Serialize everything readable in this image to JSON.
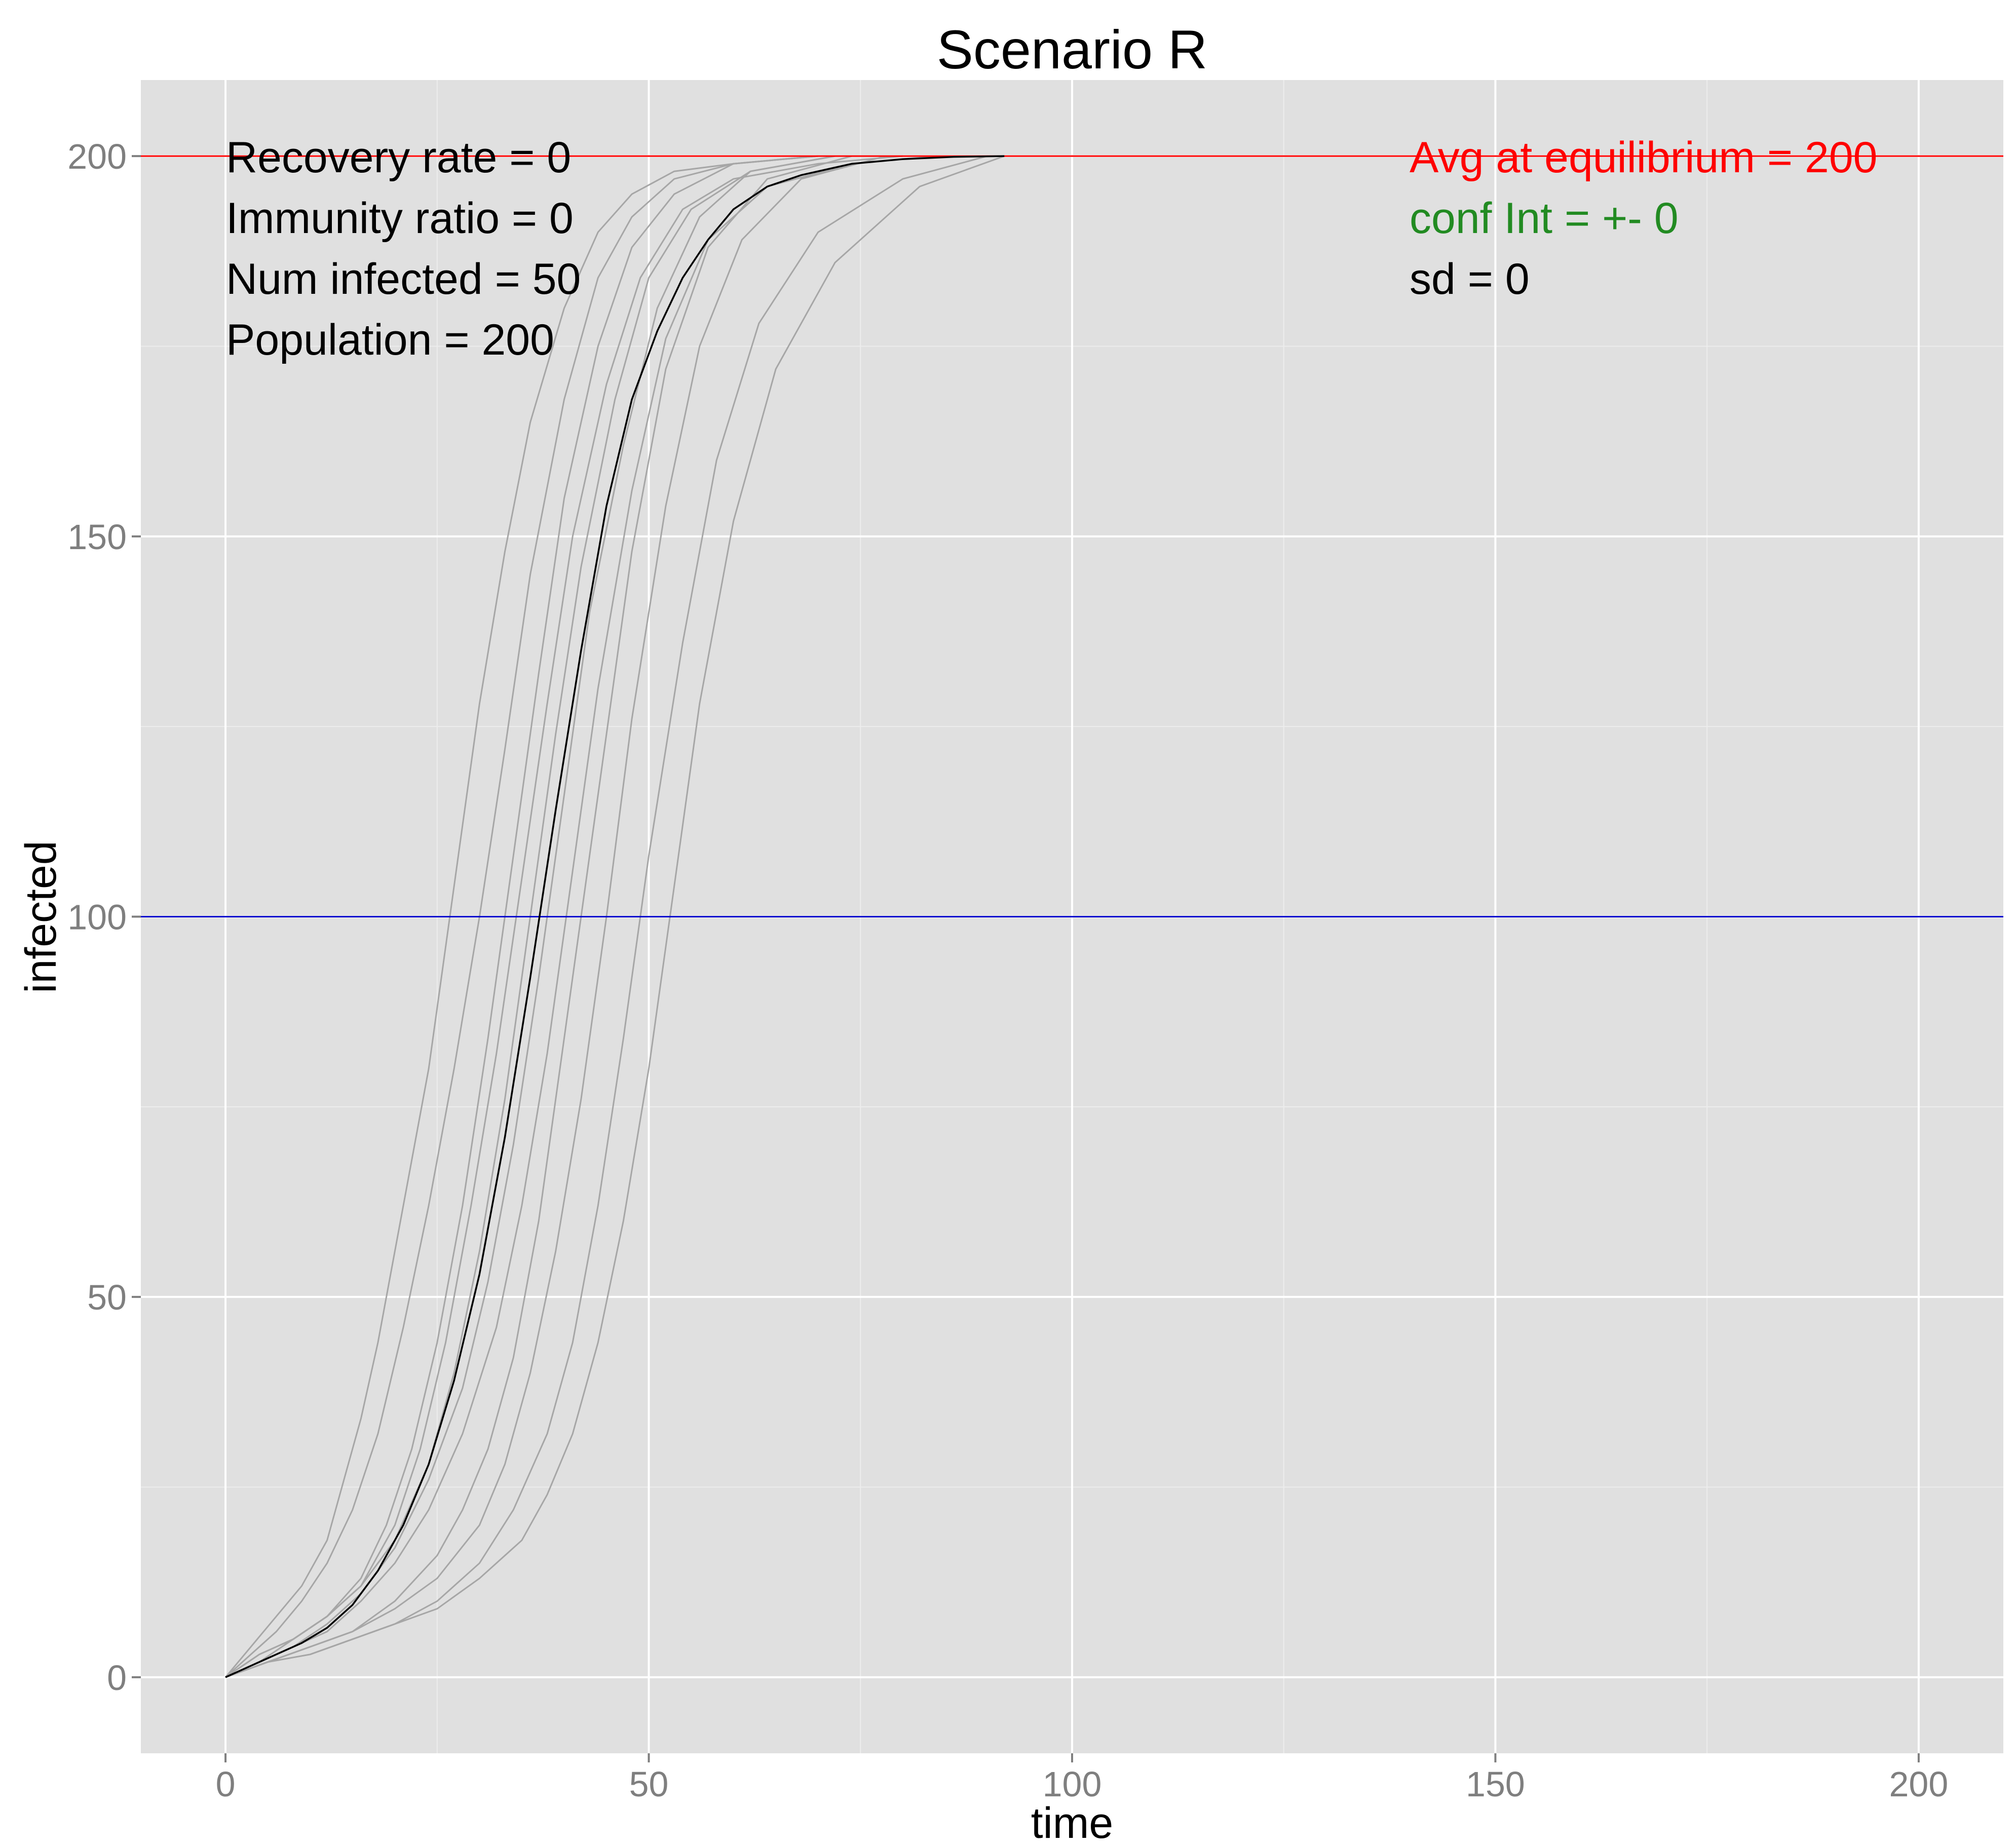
{
  "chart_data": {
    "type": "line",
    "title": "Scenario R",
    "xlabel": "time",
    "ylabel": "infected",
    "xlim": [
      -10,
      210
    ],
    "ylim": [
      -10,
      210
    ],
    "x_ticks": [
      0,
      50,
      100,
      150,
      200
    ],
    "y_ticks": [
      0,
      50,
      100,
      150,
      200
    ],
    "x_tick_labels": [
      "0",
      "50",
      "100",
      "150",
      "200"
    ],
    "y_tick_labels": [
      "0",
      "50",
      "100",
      "150",
      "200"
    ],
    "grid": true,
    "background": "#e0e0e0",
    "annotations_left": [
      "Recovery rate = 0",
      "Immunity ratio = 0",
      "Num infected = 50",
      "Population = 200"
    ],
    "annotations_right": [
      {
        "text": "Avg at equilibrium = 200",
        "color": "#ff0000"
      },
      {
        "text": "conf Int = +- 0",
        "color": "#228b22"
      },
      {
        "text": "sd = 0",
        "color": "#000000"
      }
    ],
    "hlines": [
      {
        "y": 200,
        "color": "#ff0000"
      },
      {
        "y": 100,
        "color": "#0000cc"
      }
    ],
    "series_color": "#a6a6a6",
    "mean_color": "#000000",
    "series": [
      {
        "x": [
          0,
          3,
          6,
          9,
          12,
          14,
          16,
          18,
          20,
          22,
          24,
          26,
          28,
          30,
          33,
          36,
          40,
          44,
          48,
          53,
          60,
          70,
          80
        ],
        "y": [
          0,
          4,
          8,
          12,
          18,
          26,
          34,
          44,
          56,
          68,
          80,
          96,
          112,
          128,
          148,
          165,
          180,
          190,
          195,
          198,
          199,
          200,
          200
        ]
      },
      {
        "x": [
          0,
          3,
          6,
          9,
          12,
          15,
          18,
          21,
          24,
          27,
          30,
          33,
          36,
          40,
          44,
          48,
          53,
          60,
          70
        ],
        "y": [
          0,
          3,
          6,
          10,
          15,
          22,
          32,
          46,
          62,
          80,
          100,
          122,
          145,
          168,
          184,
          192,
          197,
          199,
          200
        ]
      },
      {
        "x": [
          0,
          4,
          8,
          12,
          16,
          19,
          22,
          25,
          28,
          31,
          34,
          37,
          40,
          44,
          48,
          53,
          60,
          70
        ],
        "y": [
          0,
          3,
          5,
          8,
          13,
          20,
          30,
          44,
          62,
          84,
          108,
          132,
          155,
          175,
          188,
          195,
          199,
          200
        ]
      },
      {
        "x": [
          0,
          4,
          8,
          12,
          16,
          20,
          23,
          26,
          29,
          32,
          35,
          38,
          41,
          45,
          49,
          54,
          60,
          70,
          80
        ],
        "y": [
          0,
          3,
          5,
          8,
          12,
          20,
          30,
          44,
          62,
          82,
          105,
          128,
          150,
          170,
          184,
          193,
          197,
          199,
          200
        ]
      },
      {
        "x": [
          0,
          4,
          8,
          12,
          16,
          20,
          24,
          27,
          30,
          33,
          36,
          39,
          42,
          46,
          50,
          55,
          62,
          72
        ],
        "y": [
          0,
          2,
          5,
          8,
          12,
          18,
          28,
          40,
          56,
          76,
          100,
          124,
          146,
          168,
          184,
          193,
          198,
          200
        ]
      },
      {
        "x": [
          0,
          4,
          8,
          12,
          16,
          20,
          24,
          28,
          31,
          34,
          37,
          40,
          43,
          47,
          51,
          56,
          62,
          72
        ],
        "y": [
          0,
          2,
          4,
          7,
          11,
          17,
          26,
          38,
          52,
          70,
          92,
          116,
          140,
          162,
          180,
          192,
          198,
          200
        ]
      },
      {
        "x": [
          0,
          4,
          8,
          12,
          16,
          20,
          24,
          28,
          32,
          35,
          38,
          41,
          44,
          48,
          52,
          57,
          64,
          74,
          84
        ],
        "y": [
          0,
          2,
          4,
          6,
          10,
          15,
          22,
          32,
          46,
          62,
          82,
          106,
          130,
          156,
          176,
          189,
          196,
          199,
          200
        ]
      },
      {
        "x": [
          0,
          5,
          10,
          15,
          20,
          25,
          28,
          31,
          34,
          37,
          40,
          44,
          48,
          52,
          57,
          64,
          74
        ],
        "y": [
          0,
          2,
          4,
          6,
          10,
          16,
          22,
          30,
          42,
          60,
          84,
          116,
          148,
          172,
          188,
          197,
          200
        ]
      },
      {
        "x": [
          0,
          5,
          10,
          15,
          20,
          25,
          30,
          33,
          36,
          39,
          42,
          45,
          48,
          52,
          56,
          61,
          68,
          78
        ],
        "y": [
          0,
          2,
          4,
          6,
          9,
          13,
          20,
          28,
          40,
          56,
          76,
          100,
          126,
          154,
          175,
          189,
          197,
          200
        ]
      },
      {
        "x": [
          0,
          5,
          10,
          15,
          20,
          25,
          30,
          34,
          38,
          41,
          44,
          47,
          50,
          54,
          58,
          63,
          70,
          80,
          90
        ],
        "y": [
          0,
          2,
          3,
          5,
          7,
          10,
          15,
          22,
          32,
          44,
          62,
          84,
          108,
          136,
          160,
          178,
          190,
          197,
          200
        ]
      },
      {
        "x": [
          0,
          5,
          10,
          15,
          20,
          25,
          30,
          35,
          38,
          41,
          44,
          47,
          50,
          53,
          56,
          60,
          65,
          72,
          82,
          92
        ],
        "y": [
          0,
          2,
          3,
          5,
          7,
          9,
          13,
          18,
          24,
          32,
          44,
          60,
          80,
          104,
          128,
          152,
          172,
          186,
          196,
          200
        ]
      }
    ],
    "mean": {
      "name": "",
      "x": [
        0,
        3,
        6,
        9,
        12,
        15,
        18,
        21,
        24,
        27,
        30,
        33,
        36,
        39,
        42,
        45,
        48,
        51,
        54,
        57,
        60,
        64,
        68,
        74,
        80,
        86,
        92
      ],
      "y": [
        0,
        1.5,
        3,
        4.5,
        6.5,
        9.5,
        14,
        20,
        28,
        39,
        53,
        71,
        92,
        114,
        135,
        154,
        168,
        177,
        184,
        189,
        193,
        196,
        197.5,
        199,
        199.6,
        199.9,
        200
      ]
    }
  }
}
